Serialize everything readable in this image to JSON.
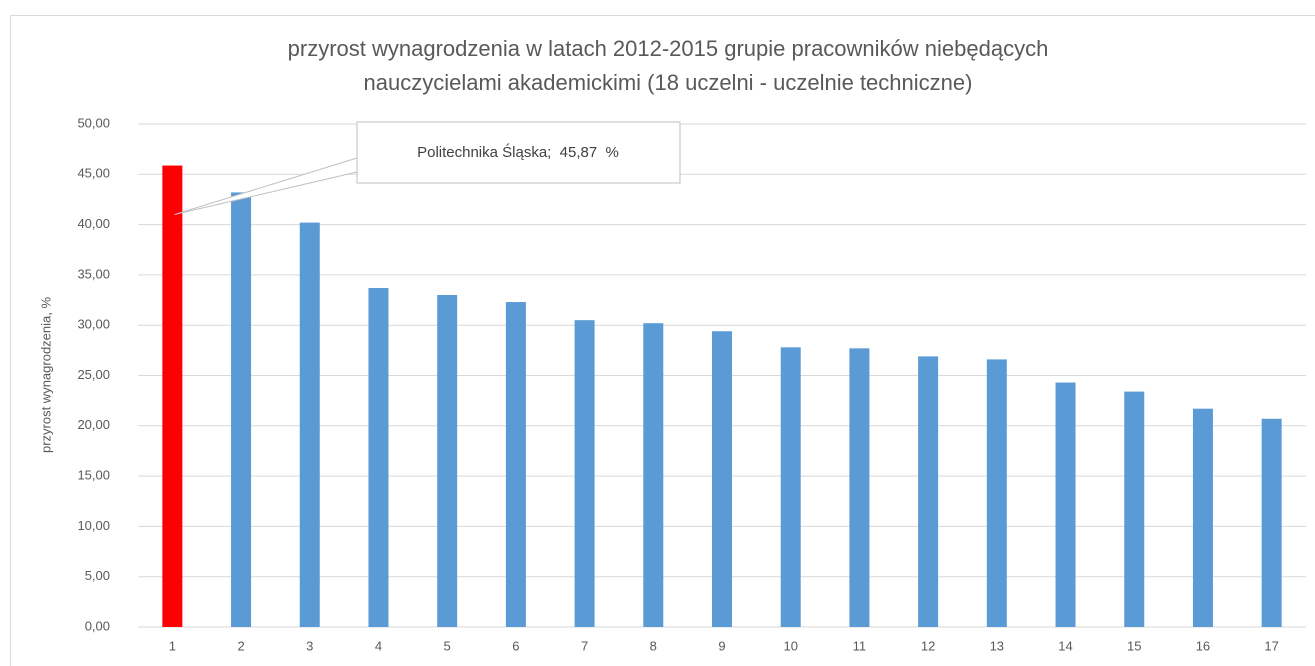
{
  "chart_data": {
    "type": "bar",
    "title": [
      "przyrost wynagrodzenia w latach 2012-2015 grupie pracowników niebędących",
      "nauczycielami akademickimi (18 uczelni - uczelnie techniczne)"
    ],
    "y_label": "przyrost wynagrodzenia, %",
    "categories": [
      "1",
      "2",
      "3",
      "4",
      "5",
      "6",
      "7",
      "8",
      "9",
      "10",
      "11",
      "12",
      "13",
      "14",
      "15",
      "16",
      "17"
    ],
    "values": [
      45.87,
      43.2,
      40.2,
      33.7,
      33.0,
      32.3,
      30.5,
      30.2,
      29.4,
      27.8,
      27.7,
      26.9,
      26.6,
      24.3,
      23.4,
      21.7,
      20.7
    ],
    "colors": [
      "#ff0000",
      "#5b9bd5",
      "#5b9bd5",
      "#5b9bd5",
      "#5b9bd5",
      "#5b9bd5",
      "#5b9bd5",
      "#5b9bd5",
      "#5b9bd5",
      "#5b9bd5",
      "#5b9bd5",
      "#5b9bd5",
      "#5b9bd5",
      "#5b9bd5",
      "#5b9bd5",
      "#5b9bd5",
      "#5b9bd5"
    ],
    "annotation": "Politechnika Śląska;  45,87  %",
    "ylim": [
      0,
      50
    ],
    "yticks": [
      {
        "value": 0,
        "label": "0,00"
      },
      {
        "value": 5,
        "label": "5,00"
      },
      {
        "value": 10,
        "label": "10,00"
      },
      {
        "value": 15,
        "label": "15,00"
      },
      {
        "value": 20,
        "label": "20,00"
      },
      {
        "value": 25,
        "label": "25,00"
      },
      {
        "value": 30,
        "label": "30,00"
      },
      {
        "value": 35,
        "label": "35,00"
      },
      {
        "value": 40,
        "label": "40,00"
      },
      {
        "value": 45,
        "label": "45,00"
      },
      {
        "value": 50,
        "label": "50,00"
      }
    ],
    "grid": true
  }
}
